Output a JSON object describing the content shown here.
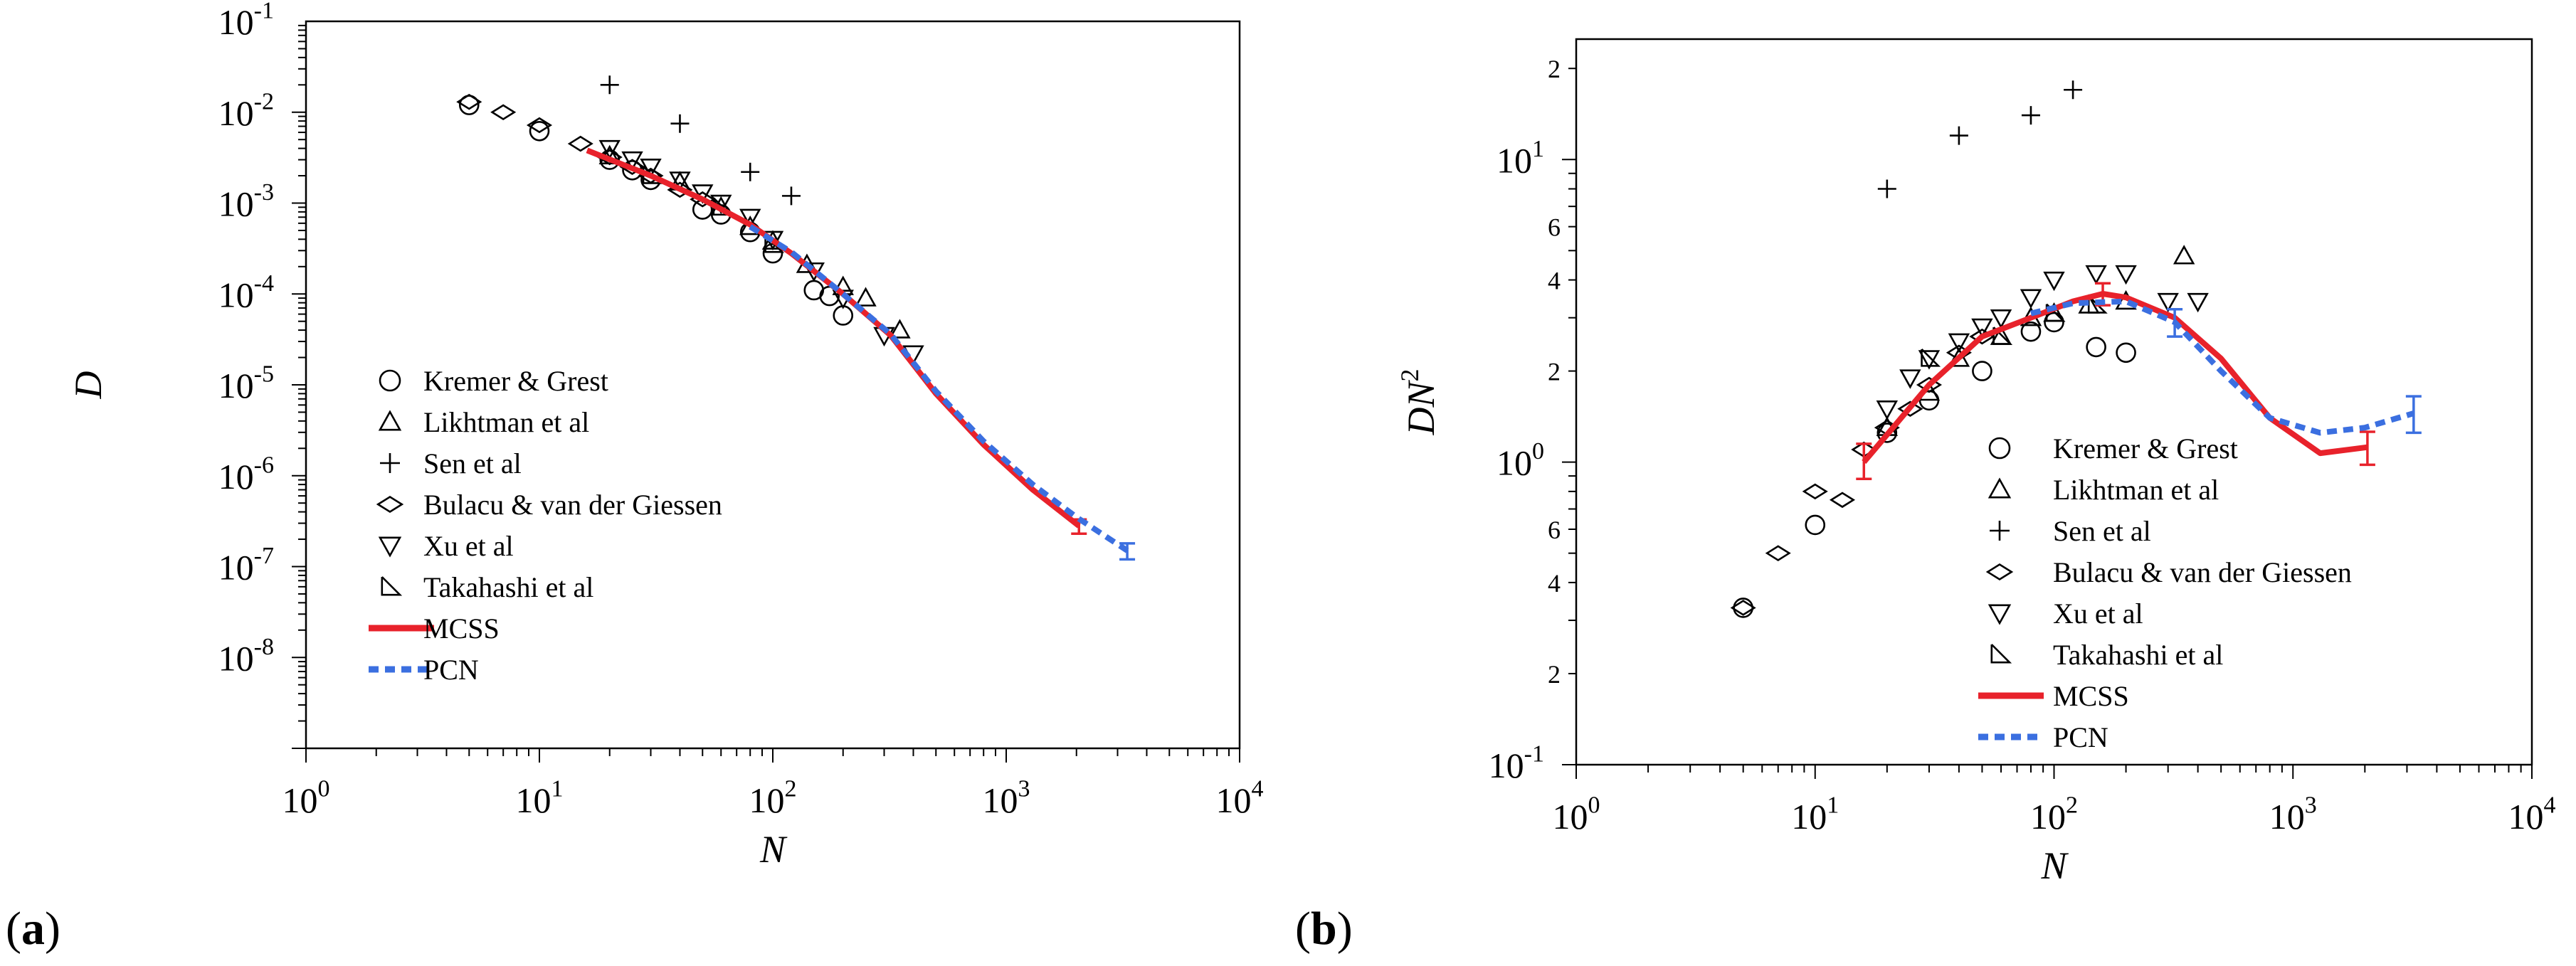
{
  "panels": [
    {
      "label_open": "(",
      "label_letter": "a",
      "label_close": ")"
    },
    {
      "label_open": "(",
      "label_letter": "b",
      "label_close": ")"
    }
  ],
  "colors": {
    "mcss": "#e8222b",
    "pcn": "#3b6fe0",
    "ink": "#000000"
  },
  "legend": [
    {
      "label": "Kremer & Grest",
      "marker": "circle"
    },
    {
      "label": "Likhtman et al",
      "marker": "triangle-up"
    },
    {
      "label": "Sen et al",
      "marker": "plus"
    },
    {
      "label": "Bulacu & van der Giessen",
      "marker": "diamond"
    },
    {
      "label": "Xu et al",
      "marker": "triangle-down"
    },
    {
      "label": "Takahashi et al",
      "marker": "right-triangle"
    },
    {
      "label": "MCSS",
      "marker": "solid-line"
    },
    {
      "label": "PCN",
      "marker": "dashed-line"
    }
  ],
  "chart_data": [
    {
      "type": "scatter",
      "panel": "a",
      "xlabel": "N",
      "ylabel": "D",
      "xscale": "log",
      "yscale": "log",
      "xlim": [
        1,
        10000
      ],
      "ylim": [
        1e-09,
        0.1
      ],
      "xticks": [
        {
          "value": 1,
          "base": "10",
          "exp": "0"
        },
        {
          "value": 10,
          "base": "10",
          "exp": "1"
        },
        {
          "value": 100,
          "base": "10",
          "exp": "2"
        },
        {
          "value": 1000,
          "base": "10",
          "exp": "3"
        },
        {
          "value": 10000,
          "base": "10",
          "exp": "4"
        }
      ],
      "yticks": [
        {
          "value": 1e-08,
          "base": "10",
          "exp": "-8"
        },
        {
          "value": 1e-07,
          "base": "10",
          "exp": "-7"
        },
        {
          "value": 1e-06,
          "base": "10",
          "exp": "-6"
        },
        {
          "value": 1e-05,
          "base": "10",
          "exp": "-5"
        },
        {
          "value": 0.0001,
          "base": "10",
          "exp": "-4"
        },
        {
          "value": 0.001,
          "base": "10",
          "exp": "-3"
        },
        {
          "value": 0.01,
          "base": "10",
          "exp": "-2"
        },
        {
          "value": 0.1,
          "base": "10",
          "exp": "-1"
        }
      ],
      "legend_position": "lower-left",
      "series": [
        {
          "name": "Kremer & Grest",
          "marker": "circle",
          "x": [
            5,
            10,
            20,
            25,
            30,
            50,
            60,
            80,
            100,
            150,
            175,
            200
          ],
          "y": [
            0.012,
            0.0062,
            0.003,
            0.0023,
            0.0018,
            0.00085,
            0.00075,
            0.00048,
            0.00028,
            0.00011,
            9.5e-05,
            5.8e-05
          ]
        },
        {
          "name": "Likhtman et al",
          "marker": "triangle-up",
          "x": [
            20,
            40,
            60,
            80,
            100,
            140,
            200,
            250,
            350
          ],
          "y": [
            0.0033,
            0.0017,
            0.0009,
            0.00055,
            0.00038,
            0.00021,
            0.00012,
            9e-05,
            4e-05
          ]
        },
        {
          "name": "Sen et al",
          "marker": "plus",
          "x": [
            20,
            40,
            80,
            120
          ],
          "y": [
            0.02,
            0.0075,
            0.0022,
            0.0012
          ]
        },
        {
          "name": "Bulacu & van der Giessen",
          "marker": "diamond",
          "x": [
            5,
            7,
            10,
            15,
            20,
            25,
            30,
            40,
            50
          ],
          "y": [
            0.013,
            0.01,
            0.0072,
            0.0045,
            0.0032,
            0.0025,
            0.002,
            0.0014,
            0.0011
          ]
        },
        {
          "name": "Xu et al",
          "marker": "triangle-down",
          "x": [
            20,
            25,
            30,
            40,
            50,
            60,
            80,
            100,
            150,
            200,
            300,
            400
          ],
          "y": [
            0.004,
            0.003,
            0.0025,
            0.0018,
            0.0013,
            0.001,
            0.0007,
            0.0004,
            0.00018,
            9e-05,
            3.5e-05,
            2.2e-05
          ]
        },
        {
          "name": "Takahashi et al",
          "marker": "right-triangle",
          "x": [
            30,
            60,
            100
          ],
          "y": [
            0.002,
            0.0009,
            0.00035
          ]
        },
        {
          "name": "MCSS",
          "style": "solid",
          "x": [
            16,
            30,
            50,
            80,
            120,
            200,
            320,
            500,
            800,
            1300,
            2050
          ],
          "y": [
            0.0038,
            0.002,
            0.0011,
            0.00058,
            0.00028,
            0.0001,
            3.5e-05,
            8e-06,
            2.2e-06,
            7e-07,
            2.8e-07
          ],
          "error_bar": {
            "x": 2050,
            "y": 2.8e-07,
            "low": 2.3e-07,
            "high": 3.3e-07
          }
        },
        {
          "name": "PCN",
          "style": "dashed",
          "x": [
            80,
            120,
            200,
            320,
            500,
            800,
            1300,
            2000,
            3300
          ],
          "y": [
            0.00055,
            0.00029,
            0.0001,
            3.6e-05,
            8.5e-06,
            2.4e-06,
            8e-07,
            3.5e-07,
            1.5e-07
          ],
          "error_bar": {
            "x": 3300,
            "y": 1.5e-07,
            "low": 1.2e-07,
            "high": 1.8e-07
          }
        }
      ]
    },
    {
      "type": "scatter",
      "panel": "b",
      "xlabel": "N",
      "ylabel_base": "DN",
      "ylabel_exp": "2",
      "xscale": "log",
      "yscale": "log",
      "xlim": [
        1,
        10000
      ],
      "ylim": [
        0.1,
        25
      ],
      "xticks": [
        {
          "value": 1,
          "base": "10",
          "exp": "0"
        },
        {
          "value": 10,
          "base": "10",
          "exp": "1"
        },
        {
          "value": 100,
          "base": "10",
          "exp": "2"
        },
        {
          "value": 1000,
          "base": "10",
          "exp": "3"
        },
        {
          "value": 10000,
          "base": "10",
          "exp": "4"
        }
      ],
      "yticks": [
        {
          "value": 0.1,
          "base": "10",
          "exp": "-1"
        },
        {
          "value": 1,
          "base": "10",
          "exp": "0"
        },
        {
          "value": 10,
          "base": "10",
          "exp": "1"
        }
      ],
      "yminor_labels": [
        {
          "value": 0.2,
          "label": "2"
        },
        {
          "value": 0.4,
          "label": "4"
        },
        {
          "value": 0.6,
          "label": "6"
        },
        {
          "value": 2,
          "label": "2"
        },
        {
          "value": 4,
          "label": "4"
        },
        {
          "value": 6,
          "label": "6"
        },
        {
          "value": 20,
          "label": "2"
        }
      ],
      "legend_position": "lower-center",
      "series": [
        {
          "name": "Kremer & Grest",
          "marker": "circle",
          "x": [
            5,
            10,
            20,
            30,
            50,
            80,
            100,
            150,
            200
          ],
          "y": [
            0.33,
            0.62,
            1.25,
            1.6,
            2.0,
            2.7,
            2.9,
            2.4,
            2.3
          ]
        },
        {
          "name": "Likhtman et al",
          "marker": "triangle-up",
          "x": [
            20,
            30,
            40,
            60,
            80,
            100,
            140,
            200,
            350
          ],
          "y": [
            1.3,
            1.7,
            2.2,
            2.6,
            3.0,
            3.1,
            3.3,
            3.4,
            4.8
          ]
        },
        {
          "name": "Sen et al",
          "marker": "plus",
          "x": [
            20,
            40,
            80,
            120
          ],
          "y": [
            8.0,
            12.0,
            14.0,
            17.0
          ]
        },
        {
          "name": "Bulacu & van der Giessen",
          "marker": "diamond",
          "x": [
            5,
            7,
            10,
            13,
            16,
            20,
            25,
            30,
            40,
            50
          ],
          "y": [
            0.33,
            0.5,
            0.8,
            0.75,
            1.1,
            1.3,
            1.5,
            1.8,
            2.3,
            2.6
          ]
        },
        {
          "name": "Xu et al",
          "marker": "triangle-down",
          "x": [
            20,
            25,
            30,
            40,
            50,
            60,
            80,
            100,
            150,
            200,
            300,
            400
          ],
          "y": [
            1.5,
            1.9,
            2.2,
            2.5,
            2.8,
            3.0,
            3.5,
            4.0,
            4.2,
            4.2,
            3.4,
            3.4
          ]
        },
        {
          "name": "Takahashi et al",
          "marker": "right-triangle",
          "x": [
            30,
            60,
            100,
            150
          ],
          "y": [
            2.2,
            2.6,
            3.1,
            3.3
          ]
        },
        {
          "name": "MCSS",
          "style": "solid",
          "x": [
            16,
            30,
            50,
            80,
            120,
            160,
            200,
            320,
            500,
            800,
            1300,
            2050
          ],
          "y": [
            1.0,
            1.8,
            2.6,
            3.0,
            3.4,
            3.6,
            3.5,
            3.0,
            2.2,
            1.4,
            1.07,
            1.12
          ],
          "error_bars": [
            {
              "x": 16,
              "y": 1.0,
              "low": 0.88,
              "high": 1.15
            },
            {
              "x": 160,
              "y": 3.6,
              "low": 3.3,
              "high": 3.9
            },
            {
              "x": 2050,
              "y": 1.12,
              "low": 0.98,
              "high": 1.26
            }
          ]
        },
        {
          "name": "PCN",
          "style": "dashed",
          "x": [
            80,
            120,
            200,
            320,
            500,
            800,
            1300,
            2000,
            3200
          ],
          "y": [
            3.1,
            3.35,
            3.4,
            2.9,
            2.0,
            1.4,
            1.25,
            1.3,
            1.45
          ],
          "error_bars": [
            {
              "x": 320,
              "y": 2.9,
              "low": 2.6,
              "high": 3.2
            },
            {
              "x": 3200,
              "y": 1.45,
              "low": 1.25,
              "high": 1.65
            }
          ]
        }
      ]
    }
  ]
}
